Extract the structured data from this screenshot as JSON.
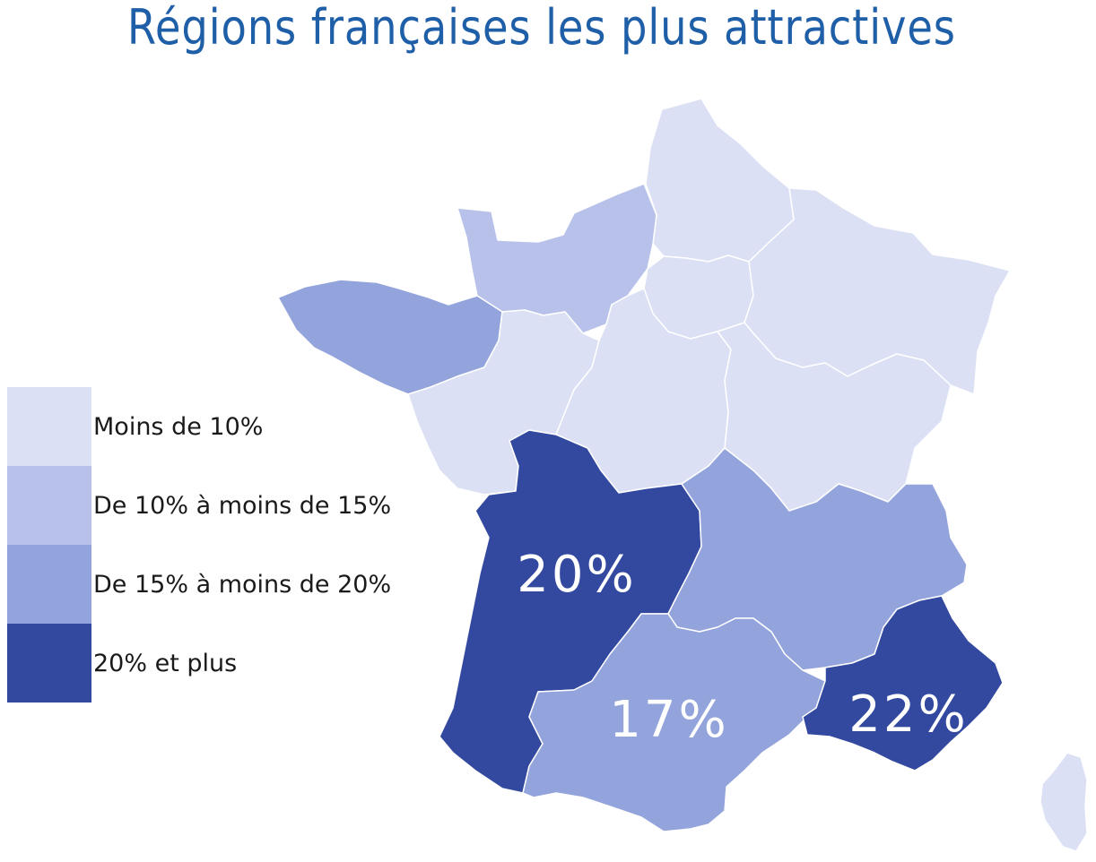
{
  "title": "Régions françaises les plus attractives",
  "legend": [
    {
      "label": "Moins de 10%",
      "color": "#dbe0f4"
    },
    {
      "label": "De 10% à moins de 15%",
      "color": "#b7c1ea"
    },
    {
      "label": "De 15% à moins de 20%",
      "color": "#93a3dc"
    },
    {
      "label": "20% et plus",
      "color": "#33489f"
    }
  ],
  "regions": [
    {
      "name": "Hauts-de-France",
      "class": "Moins de 10%"
    },
    {
      "name": "Île-de-France",
      "class": "Moins de 10%"
    },
    {
      "name": "Grand Est",
      "class": "Moins de 10%"
    },
    {
      "name": "Normandie",
      "class": "De 10% à moins de 15%"
    },
    {
      "name": "Bretagne",
      "class": "De 15% à moins de 20%"
    },
    {
      "name": "Pays de la Loire",
      "class": "Moins de 10%"
    },
    {
      "name": "Centre-Val de Loire",
      "class": "Moins de 10%"
    },
    {
      "name": "Bourgogne-Franche-Comté",
      "class": "Moins de 10%"
    },
    {
      "name": "Nouvelle-Aquitaine",
      "class": "20% et plus",
      "value_label": "20%"
    },
    {
      "name": "Auvergne-Rhône-Alpes",
      "class": "De 15% à moins de 20%"
    },
    {
      "name": "Occitanie",
      "class": "De 15% à moins de 20%",
      "value_label": "17%"
    },
    {
      "name": "Provence-Alpes-Côte d'Azur",
      "class": "20% et plus",
      "value_label": "22%"
    },
    {
      "name": "Corse",
      "class": "Moins de 10%"
    }
  ],
  "labels": {
    "nouvelle_aquitaine": "20%",
    "occitanie": "17%",
    "paca": "22%"
  }
}
